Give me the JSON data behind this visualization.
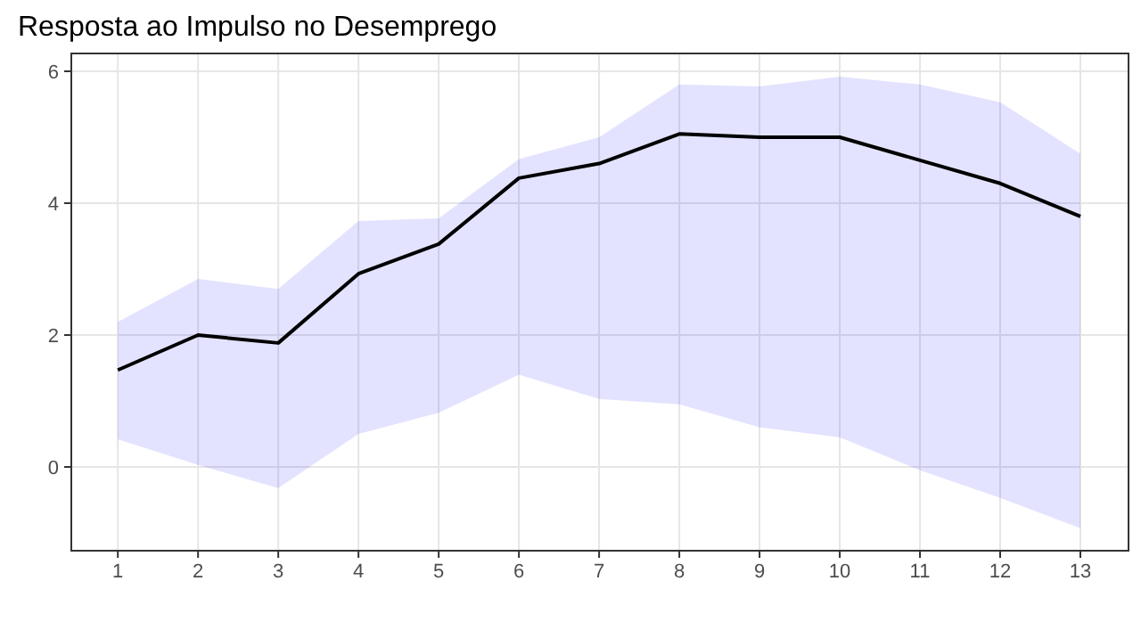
{
  "chart_data": {
    "type": "line",
    "title": "Resposta ao Impulso no Desemprego",
    "x": [
      1,
      2,
      3,
      4,
      5,
      6,
      7,
      8,
      9,
      10,
      11,
      12,
      13
    ],
    "series": [
      {
        "color": "#000000",
        "values": [
          1.47,
          2.0,
          1.88,
          2.93,
          3.38,
          4.38,
          4.6,
          5.05,
          5.0,
          5.0,
          4.65,
          4.3,
          3.8
        ],
        "lower": [
          0.42,
          0.03,
          -0.32,
          0.5,
          0.82,
          1.4,
          1.03,
          0.95,
          0.6,
          0.45,
          -0.05,
          -0.47,
          -0.93
        ],
        "upper": [
          2.2,
          2.85,
          2.7,
          3.73,
          3.77,
          4.67,
          5.0,
          5.8,
          5.77,
          5.92,
          5.8,
          5.53,
          4.75
        ]
      }
    ],
    "xlim": [
      0.42,
      13.6
    ],
    "xticks": [
      1,
      2,
      3,
      4,
      5,
      6,
      7,
      8,
      9,
      10,
      11,
      12,
      13
    ],
    "ylim": [
      -1.27,
      6.27
    ],
    "yticks": [
      0,
      2,
      4,
      6
    ],
    "grid": true,
    "marker": "none",
    "line_style": "solid"
  }
}
